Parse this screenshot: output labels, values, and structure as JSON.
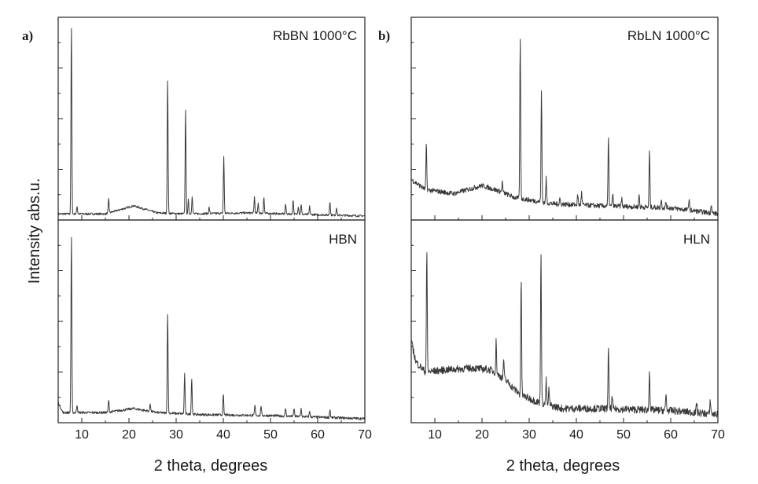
{
  "figure": {
    "ylabel": "Intensity abs.u.",
    "panels": [
      {
        "letter": "a)",
        "xlabel": "2 theta, degrees"
      },
      {
        "letter": "b)",
        "xlabel": "2 theta, degrees"
      }
    ]
  },
  "chart_data": [
    {
      "type": "line",
      "panel": "a)",
      "title": "RbBN 1000°C",
      "xlabel": "2 theta, degrees",
      "ylabel": "Intensity abs.u.",
      "xlim": [
        5,
        70
      ],
      "xticks": [
        10,
        20,
        30,
        40,
        50,
        60,
        70
      ],
      "ylim": [
        0,
        1
      ],
      "y_ticks_labeled": false,
      "grid": false,
      "background": {
        "points": [
          [
            5,
            0.03
          ],
          [
            15,
            0.03
          ],
          [
            21,
            0.07
          ],
          [
            26,
            0.035
          ],
          [
            32,
            0.03
          ],
          [
            45,
            0.035
          ],
          [
            70,
            0.02
          ]
        ],
        "noise": 0.005
      },
      "peaks": [
        [
          7.8,
          0.93
        ],
        [
          9.0,
          0.04
        ],
        [
          15.7,
          0.07
        ],
        [
          28.2,
          0.66
        ],
        [
          32.0,
          0.52
        ],
        [
          32.6,
          0.07
        ],
        [
          33.4,
          0.09
        ],
        [
          37.0,
          0.03
        ],
        [
          40.1,
          0.28
        ],
        [
          46.6,
          0.08
        ],
        [
          47.4,
          0.05
        ],
        [
          48.6,
          0.08
        ],
        [
          53.2,
          0.05
        ],
        [
          54.8,
          0.07
        ],
        [
          55.9,
          0.04
        ],
        [
          56.5,
          0.05
        ],
        [
          58.3,
          0.04
        ],
        [
          62.6,
          0.07
        ],
        [
          64.0,
          0.04
        ]
      ]
    },
    {
      "type": "line",
      "panel": "a)",
      "title": "HBN",
      "xlabel": "2 theta, degrees",
      "ylabel": "Intensity abs.u.",
      "xlim": [
        5,
        70
      ],
      "xticks": [
        10,
        20,
        30,
        40,
        50,
        60,
        70
      ],
      "ylim": [
        0,
        1
      ],
      "y_ticks_labeled": false,
      "grid": false,
      "background": {
        "points": [
          [
            5,
            0.1
          ],
          [
            6,
            0.05
          ],
          [
            15,
            0.05
          ],
          [
            21,
            0.07
          ],
          [
            26,
            0.05
          ],
          [
            35,
            0.04
          ],
          [
            50,
            0.035
          ],
          [
            70,
            0.02
          ]
        ],
        "noise": 0.006
      },
      "peaks": [
        [
          7.8,
          0.88
        ],
        [
          9.0,
          0.04
        ],
        [
          15.7,
          0.06
        ],
        [
          24.5,
          0.04
        ],
        [
          28.2,
          0.5
        ],
        [
          31.8,
          0.2
        ],
        [
          33.3,
          0.18
        ],
        [
          40.0,
          0.1
        ],
        [
          46.7,
          0.05
        ],
        [
          48.0,
          0.05
        ],
        [
          53.2,
          0.04
        ],
        [
          55.0,
          0.04
        ],
        [
          56.5,
          0.04
        ],
        [
          58.3,
          0.03
        ],
        [
          62.6,
          0.04
        ]
      ]
    },
    {
      "type": "line",
      "panel": "b)",
      "title": "RbLN 1000°C",
      "xlabel": "2 theta, degrees",
      "ylabel": "Intensity abs.u.",
      "xlim": [
        5,
        70
      ],
      "xticks": [
        10,
        20,
        30,
        40,
        50,
        60,
        70
      ],
      "ylim": [
        0,
        1
      ],
      "y_ticks_labeled": false,
      "grid": false,
      "background": {
        "points": [
          [
            5,
            0.2
          ],
          [
            8,
            0.15
          ],
          [
            14,
            0.13
          ],
          [
            20,
            0.17
          ],
          [
            24,
            0.14
          ],
          [
            27,
            0.11
          ],
          [
            35,
            0.08
          ],
          [
            45,
            0.07
          ],
          [
            60,
            0.06
          ],
          [
            70,
            0.03
          ]
        ],
        "noise": 0.012
      },
      "peaks": [
        [
          8.2,
          0.22
        ],
        [
          24.3,
          0.05
        ],
        [
          28.1,
          0.8
        ],
        [
          32.6,
          0.55
        ],
        [
          33.6,
          0.12
        ],
        [
          36.5,
          0.03
        ],
        [
          40.3,
          0.05
        ],
        [
          41.1,
          0.06
        ],
        [
          46.8,
          0.34
        ],
        [
          47.7,
          0.06
        ],
        [
          49.6,
          0.04
        ],
        [
          53.3,
          0.06
        ],
        [
          55.5,
          0.28
        ],
        [
          58.0,
          0.04
        ],
        [
          59.0,
          0.03
        ],
        [
          63.9,
          0.06
        ],
        [
          68.6,
          0.05
        ]
      ]
    },
    {
      "type": "line",
      "panel": "b)",
      "title": "HLN",
      "xlabel": "2 theta, degrees",
      "ylabel": "Intensity abs.u.",
      "xlim": [
        5,
        70
      ],
      "xticks": [
        10,
        20,
        30,
        40,
        50,
        60,
        70
      ],
      "ylim": [
        0,
        1
      ],
      "y_ticks_labeled": false,
      "grid": false,
      "background": {
        "points": [
          [
            5,
            0.4
          ],
          [
            6,
            0.3
          ],
          [
            8,
            0.25
          ],
          [
            12,
            0.26
          ],
          [
            18,
            0.27
          ],
          [
            22,
            0.26
          ],
          [
            25,
            0.21
          ],
          [
            28,
            0.14
          ],
          [
            32,
            0.1
          ],
          [
            37,
            0.07
          ],
          [
            45,
            0.07
          ],
          [
            60,
            0.06
          ],
          [
            70,
            0.04
          ]
        ],
        "noise": 0.018
      },
      "peaks": [
        [
          8.3,
          0.6
        ],
        [
          23.0,
          0.16
        ],
        [
          24.6,
          0.1
        ],
        [
          28.3,
          0.58
        ],
        [
          32.5,
          0.76
        ],
        [
          33.6,
          0.12
        ],
        [
          34.2,
          0.08
        ],
        [
          46.8,
          0.3
        ],
        [
          47.6,
          0.06
        ],
        [
          55.5,
          0.2
        ],
        [
          59.0,
          0.08
        ],
        [
          65.5,
          0.05
        ],
        [
          68.4,
          0.07
        ]
      ]
    }
  ]
}
